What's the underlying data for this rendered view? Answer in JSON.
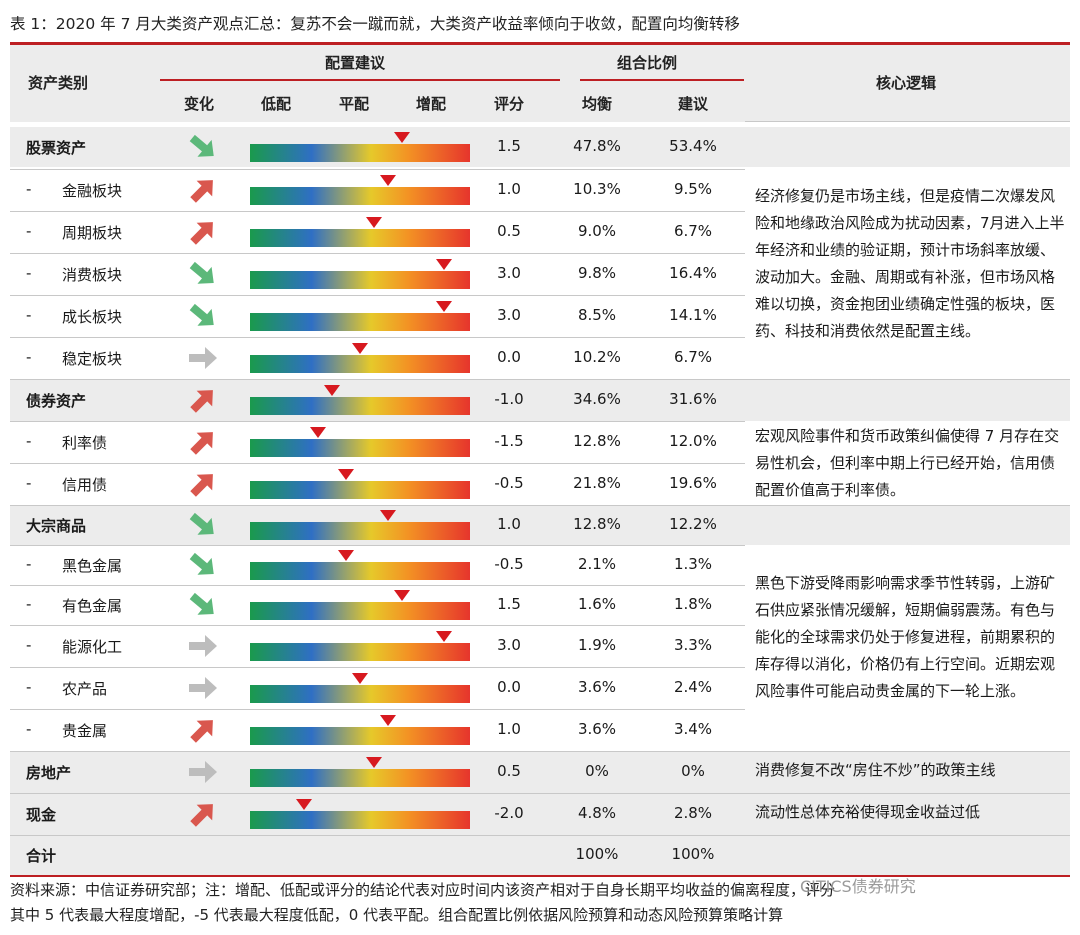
{
  "caption": "表 1：2020 年 7 月大类资产观点汇总：复苏不会一蹴而就，大类资产收益率倾向于收敛，配置向均衡转移",
  "header": {
    "asset_class": "资产类别",
    "allocation_advice": "配置建议",
    "portfolio_ratio": "组合比例",
    "core_logic": "核心逻辑",
    "change": "变化",
    "underweight": "低配",
    "neutral": "平配",
    "overweight": "增配",
    "score": "评分",
    "balanced": "均衡",
    "suggested": "建议"
  },
  "rows": [
    {
      "prefix": "",
      "name": "股票资产",
      "arrow": "down-right-green-arrow",
      "score": "1.5",
      "balanced": "47.8%",
      "suggested": "53.4%"
    },
    {
      "prefix": "-",
      "name": "金融板块",
      "arrow": "up-right-red-arrow",
      "score": "1.0",
      "balanced": "10.3%",
      "suggested": "9.5%"
    },
    {
      "prefix": "-",
      "name": "周期板块",
      "arrow": "up-right-red-arrow",
      "score": "0.5",
      "balanced": "9.0%",
      "suggested": "6.7%"
    },
    {
      "prefix": "-",
      "name": "消费板块",
      "arrow": "down-right-green-arrow",
      "score": "3.0",
      "balanced": "9.8%",
      "suggested": "16.4%"
    },
    {
      "prefix": "-",
      "name": "成长板块",
      "arrow": "down-right-green-arrow",
      "score": "3.0",
      "balanced": "8.5%",
      "suggested": "14.1%"
    },
    {
      "prefix": "-",
      "name": "稳定板块",
      "arrow": "right-gray-arrow",
      "score": "0.0",
      "balanced": "10.2%",
      "suggested": "6.7%"
    },
    {
      "prefix": "",
      "name": "债券资产",
      "arrow": "up-right-red-arrow",
      "score": "-1.0",
      "balanced": "34.6%",
      "suggested": "31.6%"
    },
    {
      "prefix": "-",
      "name": "利率债",
      "arrow": "up-right-red-arrow",
      "score": "-1.5",
      "balanced": "12.8%",
      "suggested": "12.0%"
    },
    {
      "prefix": "-",
      "name": "信用债",
      "arrow": "up-right-red-arrow",
      "score": "-0.5",
      "balanced": "21.8%",
      "suggested": "19.6%"
    },
    {
      "prefix": "",
      "name": "大宗商品",
      "arrow": "down-right-green-arrow",
      "score": "1.0",
      "balanced": "12.8%",
      "suggested": "12.2%"
    },
    {
      "prefix": "-",
      "name": "黑色金属",
      "arrow": "down-right-green-arrow",
      "score": "-0.5",
      "balanced": "2.1%",
      "suggested": "1.3%"
    },
    {
      "prefix": "-",
      "name": "有色金属",
      "arrow": "down-right-green-arrow",
      "score": "1.5",
      "balanced": "1.6%",
      "suggested": "1.8%"
    },
    {
      "prefix": "-",
      "name": "能源化工",
      "arrow": "right-gray-arrow",
      "score": "3.0",
      "balanced": "1.9%",
      "suggested": "3.3%"
    },
    {
      "prefix": "-",
      "name": "农产品",
      "arrow": "right-gray-arrow",
      "score": "0.0",
      "balanced": "3.6%",
      "suggested": "2.4%"
    },
    {
      "prefix": "-",
      "name": "贵金属",
      "arrow": "up-right-red-arrow",
      "score": "1.0",
      "balanced": "3.6%",
      "suggested": "3.4%"
    },
    {
      "prefix": "",
      "name": "房地产",
      "arrow": "right-gray-arrow",
      "score": "0.5",
      "balanced": "0%",
      "suggested": "0%"
    },
    {
      "prefix": "",
      "name": "现金",
      "arrow": "up-right-red-arrow",
      "score": "-2.0",
      "balanced": "4.8%",
      "suggested": "2.8%"
    }
  ],
  "total": {
    "name": "合计",
    "balanced": "100%",
    "suggested": "100%"
  },
  "logic": [
    "经济修复仍是市场主线，但是疫情二次爆发风险和地缘政治风险成为扰动因素，7月进入上半年经济和业绩的验证期，预计市场斜率放缓、波动加大。金融、周期或有补涨，但市场风格难以切换，资金抱团业绩确定性强的板块，医药、科技和消费依然是配置主线。",
    "宏观风险事件和货币政策纠偏使得 7 月存在交易性机会，但利率中期上行已经开始，信用债配置价值高于利率债。",
    "黑色下游受降雨影响需求季节性转弱，上游矿石供应紧张情况缓解，短期偏弱震荡。有色与能化的全球需求仍处于修复进程，前期累积的库存得以消化，价格仍有上行空间。近期宏观风险事件可能启动贵金属的下一轮上涨。",
    "消费修复不改“房住不炒”的政策主线",
    "流动性总体充裕使得现金收益过低"
  ],
  "notes": {
    "line1": "资料来源：中信证券研究部；注：增配、低配或评分的结论代表对应时间内该资产相对于自身长期平均收益的偏离程度，评分",
    "line2": "其中 5 代表最大程度增配，-5 代表最大程度低配，0 代表平配。组合配置比例依据风险预算和动态风险预算策略计算"
  },
  "watermark": "CITICS债券研究",
  "colors": {
    "accent_red": "#bd1f23",
    "marker_red": "#d7191f",
    "green_arrow": "#5cb87a",
    "red_arrow": "#d9574e",
    "gray_arrow": "#bdbdbd",
    "header_bg": "#ececec"
  }
}
